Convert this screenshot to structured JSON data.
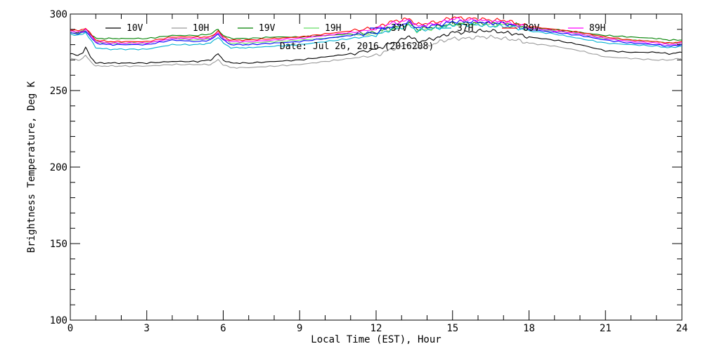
{
  "chart_data": {
    "type": "line",
    "title": "",
    "annotation": "Date: Jul 26, 2016 (2016208)",
    "xlabel": "Local Time (EST), Hour",
    "ylabel": "Brightness Temperature, Deg K",
    "xlim": [
      0,
      24
    ],
    "ylim": [
      100,
      300
    ],
    "xticks": [
      0,
      3,
      6,
      9,
      12,
      15,
      18,
      21,
      24
    ],
    "xtick_labels": [
      "0",
      "3",
      "6",
      "9",
      "12",
      "15",
      "18",
      "21",
      "24"
    ],
    "yticks": [
      100,
      150,
      200,
      250,
      300
    ],
    "ytick_labels": [
      "100",
      "150",
      "200",
      "250",
      "300"
    ],
    "grid": false,
    "legend_position": "top",
    "x": [
      0,
      0.3,
      0.5,
      0.6,
      0.8,
      1,
      1.5,
      2,
      3,
      4,
      5,
      5.5,
      5.8,
      6,
      6.3,
      7,
      8,
      9,
      10,
      11,
      12,
      12.3,
      12.6,
      13,
      13.3,
      13.6,
      14,
      14.5,
      15,
      15.5,
      16,
      16.5,
      17,
      17.5,
      18,
      19,
      20,
      21,
      22,
      23,
      23.5,
      24
    ],
    "series": [
      {
        "name": "10V",
        "color": "#000000",
        "values": [
          274,
          273,
          275,
          278,
          272,
          268,
          268,
          268,
          268,
          269,
          269,
          270,
          274,
          270,
          268,
          268,
          269,
          270,
          272,
          274,
          277,
          279,
          281,
          283,
          286,
          282,
          283,
          285,
          288,
          288,
          289,
          289,
          288,
          287,
          285,
          283,
          280,
          276,
          275,
          275,
          274,
          275
        ]
      },
      {
        "name": "10H",
        "color": "#9a9a9a",
        "values": [
          271,
          270,
          271,
          273,
          269,
          266,
          266,
          266,
          266,
          267,
          267,
          267,
          270,
          267,
          265,
          265,
          266,
          267,
          269,
          271,
          273,
          275,
          277,
          279,
          281,
          278,
          279,
          282,
          284,
          284,
          285,
          285,
          284,
          283,
          281,
          279,
          276,
          272,
          271,
          270,
          270,
          271
        ]
      },
      {
        "name": "19V",
        "color": "#008000",
        "values": [
          289,
          288,
          289,
          290,
          287,
          284,
          284,
          284,
          284,
          286,
          286,
          287,
          290,
          286,
          284,
          284,
          285,
          285,
          286,
          287,
          288,
          290,
          291,
          292,
          294,
          290,
          291,
          292,
          294,
          294,
          294,
          294,
          294,
          293,
          291,
          290,
          288,
          286,
          285,
          284,
          283,
          283
        ]
      },
      {
        "name": "19H",
        "color": "#66dd66",
        "values": [
          288,
          287,
          288,
          289,
          286,
          282,
          281,
          281,
          281,
          284,
          283,
          284,
          288,
          284,
          281,
          281,
          282,
          283,
          284,
          286,
          287,
          289,
          290,
          291,
          293,
          289,
          290,
          291,
          293,
          293,
          293,
          293,
          293,
          292,
          290,
          289,
          287,
          284,
          283,
          282,
          281,
          281
        ]
      },
      {
        "name": "37V",
        "color": "#0000ff",
        "values": [
          288,
          287,
          288,
          289,
          285,
          281,
          280,
          280,
          280,
          283,
          282,
          283,
          287,
          283,
          280,
          280,
          281,
          282,
          284,
          286,
          288,
          290,
          292,
          293,
          295,
          291,
          292,
          293,
          295,
          295,
          295,
          294,
          294,
          292,
          290,
          288,
          286,
          283,
          281,
          280,
          279,
          280
        ]
      },
      {
        "name": "37H",
        "color": "#00b0d0",
        "values": [
          287,
          286,
          287,
          288,
          283,
          278,
          277,
          277,
          277,
          280,
          280,
          281,
          285,
          281,
          278,
          278,
          279,
          280,
          282,
          284,
          286,
          288,
          290,
          291,
          293,
          289,
          290,
          291,
          293,
          293,
          293,
          292,
          292,
          291,
          289,
          287,
          284,
          281,
          280,
          279,
          278,
          279
        ]
      },
      {
        "name": "89V",
        "color": "#ff0000",
        "values": [
          290,
          289,
          290,
          291,
          287,
          283,
          282,
          282,
          282,
          285,
          285,
          285,
          289,
          285,
          283,
          283,
          284,
          285,
          287,
          289,
          291,
          293,
          295,
          296,
          297,
          293,
          294,
          295,
          298,
          297,
          297,
          296,
          296,
          294,
          292,
          290,
          288,
          285,
          283,
          282,
          281,
          282
        ]
      },
      {
        "name": "89H",
        "color": "#ff00ff",
        "values": [
          289,
          288,
          289,
          290,
          286,
          282,
          281,
          281,
          281,
          284,
          284,
          284,
          288,
          284,
          282,
          282,
          283,
          284,
          286,
          288,
          290,
          292,
          294,
          295,
          296,
          292,
          293,
          294,
          297,
          296,
          296,
          295,
          295,
          293,
          291,
          289,
          287,
          284,
          282,
          281,
          280,
          281
        ]
      }
    ]
  }
}
